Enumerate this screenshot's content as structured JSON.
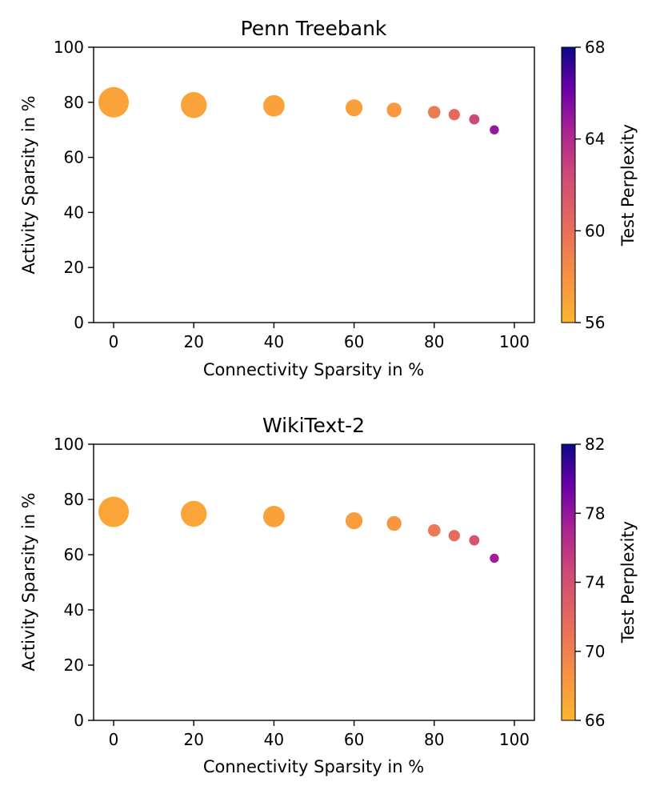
{
  "chart_data": [
    {
      "type": "scatter",
      "title": "Penn Treebank",
      "xlabel": "Connectivity Sparsity in %",
      "ylabel": "Activity Sparsity in %",
      "xlim": [
        -5,
        105
      ],
      "ylim": [
        0,
        100
      ],
      "xticks": [
        "0",
        "20",
        "40",
        "60",
        "80",
        "100"
      ],
      "yticks": [
        "0",
        "20",
        "40",
        "60",
        "80",
        "100"
      ],
      "colorbar": {
        "label": "Test Perplexity",
        "range": [
          56,
          68
        ],
        "ticks": [
          "56",
          "60",
          "64",
          "68"
        ],
        "colormap": "plasma"
      },
      "points": [
        {
          "x": 0,
          "y": 80,
          "perplexity": 57.0
        },
        {
          "x": 20,
          "y": 79,
          "perplexity": 57.0
        },
        {
          "x": 40,
          "y": 78.7,
          "perplexity": 57.1
        },
        {
          "x": 60,
          "y": 78,
          "perplexity": 57.3
        },
        {
          "x": 70,
          "y": 77.2,
          "perplexity": 57.6
        },
        {
          "x": 80,
          "y": 76.4,
          "perplexity": 59.3
        },
        {
          "x": 85,
          "y": 75.5,
          "perplexity": 60.3
        },
        {
          "x": 90,
          "y": 73.8,
          "perplexity": 62.5
        },
        {
          "x": 95,
          "y": 70,
          "perplexity": 65.0
        }
      ]
    },
    {
      "type": "scatter",
      "title": "WikiText-2",
      "xlabel": "Connectivity Sparsity in %",
      "ylabel": "Activity Sparsity in %",
      "xlim": [
        -5,
        105
      ],
      "ylim": [
        0,
        100
      ],
      "xticks": [
        "0",
        "20",
        "40",
        "60",
        "80",
        "100"
      ],
      "yticks": [
        "0",
        "20",
        "40",
        "60",
        "80",
        "100"
      ],
      "colorbar": {
        "label": "Test Perplexity",
        "range": [
          66,
          82
        ],
        "ticks": [
          "66",
          "70",
          "74",
          "78",
          "82"
        ],
        "colormap": "plasma"
      },
      "points": [
        {
          "x": 0,
          "y": 75.5,
          "perplexity": 67.2
        },
        {
          "x": 20,
          "y": 74.8,
          "perplexity": 67.2
        },
        {
          "x": 40,
          "y": 73.8,
          "perplexity": 67.4
        },
        {
          "x": 60,
          "y": 72.3,
          "perplexity": 67.8
        },
        {
          "x": 70,
          "y": 71.3,
          "perplexity": 68.4
        },
        {
          "x": 80,
          "y": 68.8,
          "perplexity": 70.6
        },
        {
          "x": 85,
          "y": 66.9,
          "perplexity": 71.6
        },
        {
          "x": 90,
          "y": 65.2,
          "perplexity": 73.6
        },
        {
          "x": 95,
          "y": 58.7,
          "perplexity": 77.5
        }
      ]
    }
  ]
}
